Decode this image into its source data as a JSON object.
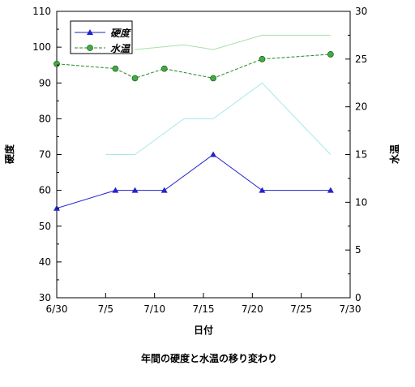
{
  "chart_data": {
    "type": "line",
    "title": "年間の硬度と水温の移り変わり",
    "xlabel": "日付",
    "ylabel_left": "硬度",
    "ylabel_right": "水温",
    "x_ticks": [
      "6/30",
      "7/5",
      "7/10",
      "7/15",
      "7/20",
      "7/25",
      "7/30"
    ],
    "x_range_days": [
      0,
      30
    ],
    "ylim_left": [
      30,
      110
    ],
    "y_ticks_left": [
      30,
      40,
      50,
      60,
      70,
      80,
      90,
      100,
      110
    ],
    "ylim_right": [
      0,
      30
    ],
    "y_ticks_right": [
      0,
      5,
      10,
      15,
      20,
      25,
      30
    ],
    "grid": false,
    "legend_position": "top-left",
    "series": [
      {
        "name": "硬度",
        "axis": "left",
        "color": "#2222cc",
        "marker": "triangle",
        "x": [
          "6/30",
          "7/6",
          "7/8",
          "7/11",
          "7/16",
          "7/21",
          "7/28"
        ],
        "values": [
          55,
          60,
          60,
          60,
          70,
          60,
          60
        ]
      },
      {
        "name": "水温",
        "axis": "right",
        "color": "#228822",
        "marker": "circle",
        "x": [
          "6/30",
          "7/6",
          "7/8",
          "7/11",
          "7/16",
          "7/21",
          "7/28"
        ],
        "values": [
          24.5,
          24,
          23,
          24,
          23,
          25,
          25.5
        ]
      },
      {
        "name": "",
        "axis": "left",
        "color": "#a8e8e8",
        "marker": "none",
        "x": [
          "7/5",
          "7/8",
          "7/13",
          "7/16",
          "7/21",
          "7/28"
        ],
        "values": [
          70,
          70,
          80,
          80,
          90,
          70
        ]
      },
      {
        "name": "",
        "axis": "right",
        "color": "#a8e0a8",
        "marker": "none",
        "x": [
          "7/8",
          "7/13",
          "7/16",
          "7/21",
          "7/28"
        ],
        "values": [
          26,
          26.5,
          26,
          27.5,
          27.5
        ]
      }
    ]
  }
}
